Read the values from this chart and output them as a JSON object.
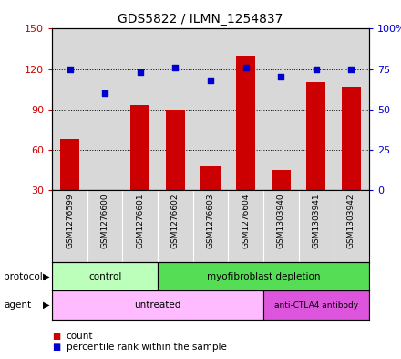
{
  "title": "GDS5822 / ILMN_1254837",
  "samples": [
    "GSM1276599",
    "GSM1276600",
    "GSM1276601",
    "GSM1276602",
    "GSM1276603",
    "GSM1276604",
    "GSM1303940",
    "GSM1303941",
    "GSM1303942"
  ],
  "counts": [
    68,
    30,
    93,
    90,
    48,
    130,
    45,
    110,
    107
  ],
  "percentiles": [
    75,
    60,
    73,
    76,
    68,
    76,
    70,
    75,
    75
  ],
  "ylim_left": [
    30,
    150
  ],
  "ylim_right": [
    0,
    100
  ],
  "yticks_left": [
    30,
    60,
    90,
    120,
    150
  ],
  "yticks_right": [
    0,
    25,
    50,
    75,
    100
  ],
  "ytick_labels_right": [
    "0",
    "25",
    "50",
    "75",
    "100%"
  ],
  "bar_color": "#cc0000",
  "dot_color": "#0000cc",
  "bar_bottom": 30,
  "protocol_labels": [
    "control",
    "myofibroblast depletion"
  ],
  "protocol_color_light": "#bbffbb",
  "protocol_color_medium": "#55dd55",
  "agent_labels": [
    "untreated",
    "anti-CTLA4 antibody"
  ],
  "agent_color_light": "#ffbbff",
  "agent_color_medium": "#dd55dd",
  "legend_count_label": "count",
  "legend_pct_label": "percentile rank within the sample",
  "panel_bg": "#d8d8d8",
  "fig_width": 4.4,
  "fig_height": 3.93,
  "fig_dpi": 100
}
